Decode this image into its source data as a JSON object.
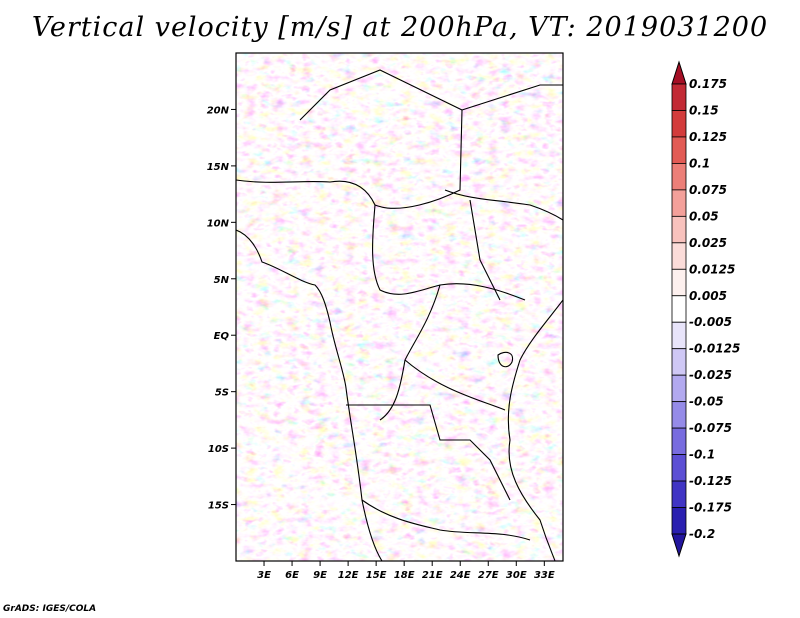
{
  "title": "Vertical velocity [m/s] at 200hPa, VT: 2019031200",
  "credit": "GrADS: IGES/COLA",
  "map": {
    "lon_range": [
      0,
      35
    ],
    "lat_range": [
      -20,
      25
    ],
    "lat_ticks": [
      {
        "value": 20,
        "label": "20N"
      },
      {
        "value": 15,
        "label": "15N"
      },
      {
        "value": 10,
        "label": "10N"
      },
      {
        "value": 5,
        "label": "5N"
      },
      {
        "value": 0,
        "label": "EQ"
      },
      {
        "value": -5,
        "label": "5S"
      },
      {
        "value": -10,
        "label": "10S"
      },
      {
        "value": -15,
        "label": "15S"
      }
    ],
    "lon_ticks": [
      {
        "value": 3,
        "label": "3E"
      },
      {
        "value": 6,
        "label": "6E"
      },
      {
        "value": 9,
        "label": "9E"
      },
      {
        "value": 12,
        "label": "12E"
      },
      {
        "value": 15,
        "label": "15E"
      },
      {
        "value": 18,
        "label": "18E"
      },
      {
        "value": 21,
        "label": "21E"
      },
      {
        "value": 24,
        "label": "24E"
      },
      {
        "value": 27,
        "label": "27E"
      },
      {
        "value": 30,
        "label": "30E"
      },
      {
        "value": 33,
        "label": "33E"
      }
    ]
  },
  "colorbar": {
    "levels": [
      {
        "label": "0.175",
        "color": "#b2182b"
      },
      {
        "label": "0.15",
        "color": "#c22a35"
      },
      {
        "label": "0.125",
        "color": "#d33c3c"
      },
      {
        "label": "0.1",
        "color": "#e25b55"
      },
      {
        "label": "0.075",
        "color": "#ec7f78"
      },
      {
        "label": "0.05",
        "color": "#f3a09a"
      },
      {
        "label": "0.025",
        "color": "#f8c2bd"
      },
      {
        "label": "0.0125",
        "color": "#fbdcd9"
      },
      {
        "label": "0.005",
        "color": "#fdf0ee"
      },
      {
        "label": "-0.005",
        "color": "#ffffff"
      },
      {
        "label": "-0.0125",
        "color": "#e8e4fa"
      },
      {
        "label": "-0.025",
        "color": "#cfc8f5"
      },
      {
        "label": "-0.05",
        "color": "#b2a9ef"
      },
      {
        "label": "-0.075",
        "color": "#958be8"
      },
      {
        "label": "-0.1",
        "color": "#786cdf"
      },
      {
        "label": "-0.125",
        "color": "#5c4fd4"
      },
      {
        "label": "-0.175",
        "color": "#4034c4"
      },
      {
        "label": "-0.2",
        "color": "#2a1fb0"
      }
    ],
    "top_color": "#a50f25",
    "bottom_color": "#23169e"
  }
}
